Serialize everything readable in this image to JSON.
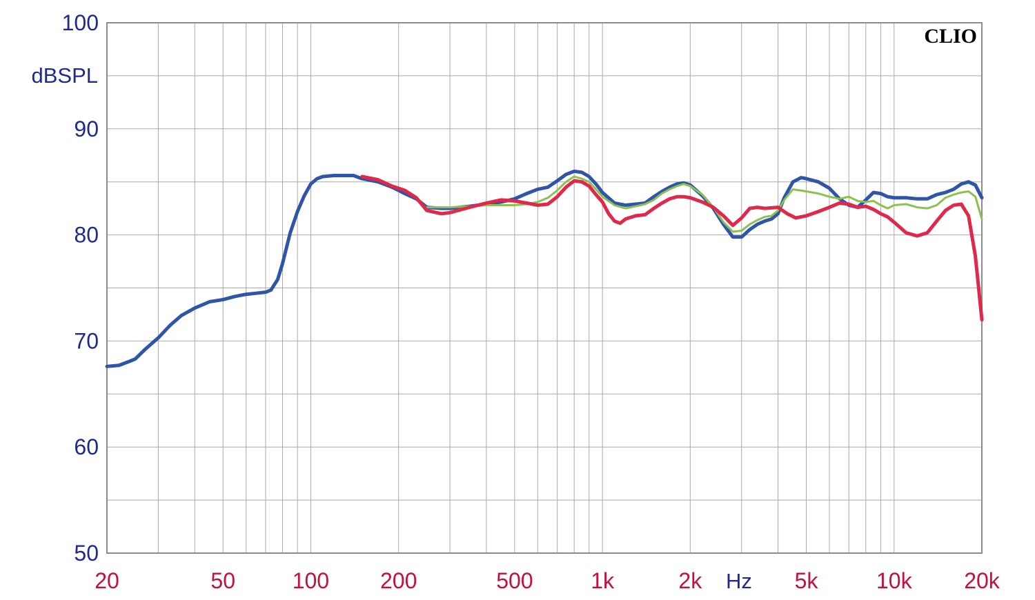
{
  "chart_data": {
    "type": "line",
    "watermark": "CLIO",
    "ylabel": "dBSPL",
    "xunit": "Hz",
    "xscale": "log",
    "xlim": [
      20,
      20000
    ],
    "ylim": [
      50,
      100
    ],
    "grid": true,
    "x_ticks": [
      {
        "value": 20,
        "label": "20"
      },
      {
        "value": 50,
        "label": "50"
      },
      {
        "value": 100,
        "label": "100"
      },
      {
        "value": 200,
        "label": "200"
      },
      {
        "value": 500,
        "label": "500"
      },
      {
        "value": 1000,
        "label": "1k"
      },
      {
        "value": 2000,
        "label": "2k"
      },
      {
        "value": 5000,
        "label": "5k"
      },
      {
        "value": 10000,
        "label": "10k"
      },
      {
        "value": 20000,
        "label": "20k"
      }
    ],
    "y_ticks": [
      {
        "value": 50,
        "label": "50"
      },
      {
        "value": 60,
        "label": "60"
      },
      {
        "value": 70,
        "label": "70"
      },
      {
        "value": 80,
        "label": "80"
      },
      {
        "value": 90,
        "label": "90"
      },
      {
        "value": 100,
        "label": "100"
      }
    ],
    "colors": {
      "axis_text": "#1f2a8f",
      "tick_text": "#c0123c",
      "grid": "#a9a9a9",
      "frame": "#8c8c8c"
    },
    "series": [
      {
        "color": "#2f55a8",
        "stroke_width": 5,
        "points": [
          [
            20,
            67.6
          ],
          [
            22,
            67.7
          ],
          [
            24,
            68.1
          ],
          [
            25,
            68.3
          ],
          [
            27,
            69.2
          ],
          [
            30,
            70.3
          ],
          [
            33,
            71.5
          ],
          [
            36,
            72.4
          ],
          [
            40,
            73.1
          ],
          [
            45,
            73.7
          ],
          [
            50,
            73.9
          ],
          [
            55,
            74.2
          ],
          [
            60,
            74.4
          ],
          [
            65,
            74.5
          ],
          [
            70,
            74.6
          ],
          [
            73,
            74.8
          ],
          [
            77,
            75.8
          ],
          [
            80,
            77.3
          ],
          [
            85,
            80.2
          ],
          [
            90,
            82.2
          ],
          [
            95,
            83.7
          ],
          [
            100,
            84.8
          ],
          [
            105,
            85.3
          ],
          [
            110,
            85.5
          ],
          [
            120,
            85.6
          ],
          [
            130,
            85.6
          ],
          [
            140,
            85.6
          ],
          [
            150,
            85.3
          ],
          [
            170,
            85.0
          ],
          [
            190,
            84.5
          ],
          [
            210,
            83.9
          ],
          [
            230,
            83.4
          ],
          [
            250,
            82.6
          ],
          [
            280,
            82.5
          ],
          [
            300,
            82.5
          ],
          [
            350,
            82.7
          ],
          [
            400,
            82.9
          ],
          [
            450,
            83.1
          ],
          [
            500,
            83.4
          ],
          [
            550,
            83.9
          ],
          [
            600,
            84.3
          ],
          [
            650,
            84.5
          ],
          [
            700,
            85.1
          ],
          [
            750,
            85.7
          ],
          [
            800,
            86.0
          ],
          [
            850,
            85.9
          ],
          [
            900,
            85.5
          ],
          [
            950,
            84.8
          ],
          [
            1000,
            84.0
          ],
          [
            1100,
            83.0
          ],
          [
            1200,
            82.8
          ],
          [
            1300,
            82.9
          ],
          [
            1400,
            83.0
          ],
          [
            1500,
            83.6
          ],
          [
            1600,
            84.1
          ],
          [
            1700,
            84.5
          ],
          [
            1800,
            84.8
          ],
          [
            1900,
            84.9
          ],
          [
            2000,
            84.7
          ],
          [
            2200,
            83.7
          ],
          [
            2400,
            82.5
          ],
          [
            2600,
            81.0
          ],
          [
            2800,
            79.8
          ],
          [
            3000,
            79.8
          ],
          [
            3200,
            80.5
          ],
          [
            3400,
            81.0
          ],
          [
            3600,
            81.3
          ],
          [
            3800,
            81.5
          ],
          [
            4000,
            82.0
          ],
          [
            4200,
            83.5
          ],
          [
            4500,
            85.0
          ],
          [
            4800,
            85.4
          ],
          [
            5000,
            85.3
          ],
          [
            5500,
            85.0
          ],
          [
            6000,
            84.4
          ],
          [
            6500,
            83.4
          ],
          [
            7000,
            82.8
          ],
          [
            7500,
            82.6
          ],
          [
            8000,
            83.3
          ],
          [
            8500,
            84.0
          ],
          [
            9000,
            83.9
          ],
          [
            9500,
            83.6
          ],
          [
            10000,
            83.5
          ],
          [
            11000,
            83.5
          ],
          [
            12000,
            83.4
          ],
          [
            13000,
            83.4
          ],
          [
            14000,
            83.8
          ],
          [
            15000,
            84.0
          ],
          [
            16000,
            84.3
          ],
          [
            17000,
            84.8
          ],
          [
            18000,
            85.0
          ],
          [
            19000,
            84.7
          ],
          [
            20000,
            83.5
          ]
        ]
      },
      {
        "color": "#8cc152",
        "stroke_width": 3,
        "points": [
          [
            250,
            82.6
          ],
          [
            300,
            82.6
          ],
          [
            350,
            82.7
          ],
          [
            400,
            82.8
          ],
          [
            450,
            82.8
          ],
          [
            500,
            82.8
          ],
          [
            550,
            82.9
          ],
          [
            600,
            83.1
          ],
          [
            650,
            83.5
          ],
          [
            700,
            84.2
          ],
          [
            750,
            85.0
          ],
          [
            800,
            85.5
          ],
          [
            850,
            85.3
          ],
          [
            900,
            85.0
          ],
          [
            950,
            84.3
          ],
          [
            1000,
            83.6
          ],
          [
            1100,
            82.8
          ],
          [
            1200,
            82.5
          ],
          [
            1300,
            82.7
          ],
          [
            1400,
            82.9
          ],
          [
            1500,
            83.3
          ],
          [
            1600,
            83.9
          ],
          [
            1700,
            84.3
          ],
          [
            1800,
            84.6
          ],
          [
            1900,
            84.8
          ],
          [
            2000,
            84.6
          ],
          [
            2200,
            83.8
          ],
          [
            2400,
            82.6
          ],
          [
            2600,
            81.2
          ],
          [
            2800,
            80.3
          ],
          [
            3000,
            80.4
          ],
          [
            3200,
            81.0
          ],
          [
            3400,
            81.4
          ],
          [
            3600,
            81.7
          ],
          [
            3800,
            81.8
          ],
          [
            4000,
            82.3
          ],
          [
            4200,
            83.3
          ],
          [
            4500,
            84.3
          ],
          [
            5000,
            84.1
          ],
          [
            5500,
            83.9
          ],
          [
            6000,
            83.6
          ],
          [
            6500,
            83.4
          ],
          [
            7000,
            83.6
          ],
          [
            7500,
            83.2
          ],
          [
            8000,
            83.1
          ],
          [
            8500,
            83.2
          ],
          [
            9000,
            82.8
          ],
          [
            9500,
            82.5
          ],
          [
            10000,
            82.8
          ],
          [
            11000,
            82.9
          ],
          [
            12000,
            82.6
          ],
          [
            13000,
            82.5
          ],
          [
            14000,
            82.8
          ],
          [
            15000,
            83.5
          ],
          [
            16000,
            83.8
          ],
          [
            17000,
            84.0
          ],
          [
            18000,
            84.1
          ],
          [
            19000,
            83.6
          ],
          [
            20000,
            81.5
          ]
        ]
      },
      {
        "color": "#e0284a",
        "stroke_width": 5,
        "points": [
          [
            150,
            85.5
          ],
          [
            170,
            85.2
          ],
          [
            190,
            84.6
          ],
          [
            210,
            84.2
          ],
          [
            230,
            83.5
          ],
          [
            250,
            82.3
          ],
          [
            280,
            82.0
          ],
          [
            300,
            82.1
          ],
          [
            350,
            82.6
          ],
          [
            400,
            83.0
          ],
          [
            450,
            83.3
          ],
          [
            500,
            83.2
          ],
          [
            550,
            83.0
          ],
          [
            600,
            82.8
          ],
          [
            650,
            82.9
          ],
          [
            700,
            83.6
          ],
          [
            750,
            84.5
          ],
          [
            800,
            85.1
          ],
          [
            850,
            85.0
          ],
          [
            900,
            84.6
          ],
          [
            950,
            83.8
          ],
          [
            1000,
            83.1
          ],
          [
            1050,
            82.0
          ],
          [
            1100,
            81.3
          ],
          [
            1150,
            81.1
          ],
          [
            1200,
            81.5
          ],
          [
            1300,
            81.8
          ],
          [
            1400,
            81.9
          ],
          [
            1500,
            82.5
          ],
          [
            1600,
            83.0
          ],
          [
            1700,
            83.4
          ],
          [
            1800,
            83.6
          ],
          [
            1900,
            83.6
          ],
          [
            2000,
            83.5
          ],
          [
            2200,
            83.1
          ],
          [
            2400,
            82.6
          ],
          [
            2600,
            81.8
          ],
          [
            2800,
            80.9
          ],
          [
            3000,
            81.6
          ],
          [
            3200,
            82.5
          ],
          [
            3400,
            82.6
          ],
          [
            3600,
            82.5
          ],
          [
            4000,
            82.6
          ],
          [
            4300,
            82.0
          ],
          [
            4600,
            81.6
          ],
          [
            5000,
            81.8
          ],
          [
            5500,
            82.2
          ],
          [
            6000,
            82.6
          ],
          [
            6500,
            83.0
          ],
          [
            7000,
            82.9
          ],
          [
            7500,
            82.6
          ],
          [
            8000,
            82.7
          ],
          [
            8500,
            82.4
          ],
          [
            9000,
            82.0
          ],
          [
            9500,
            81.7
          ],
          [
            10000,
            81.2
          ],
          [
            11000,
            80.2
          ],
          [
            12000,
            79.9
          ],
          [
            13000,
            80.2
          ],
          [
            14000,
            81.3
          ],
          [
            15000,
            82.3
          ],
          [
            16000,
            82.8
          ],
          [
            17000,
            82.9
          ],
          [
            18000,
            81.8
          ],
          [
            19000,
            78.0
          ],
          [
            20000,
            72.0
          ]
        ]
      }
    ]
  }
}
